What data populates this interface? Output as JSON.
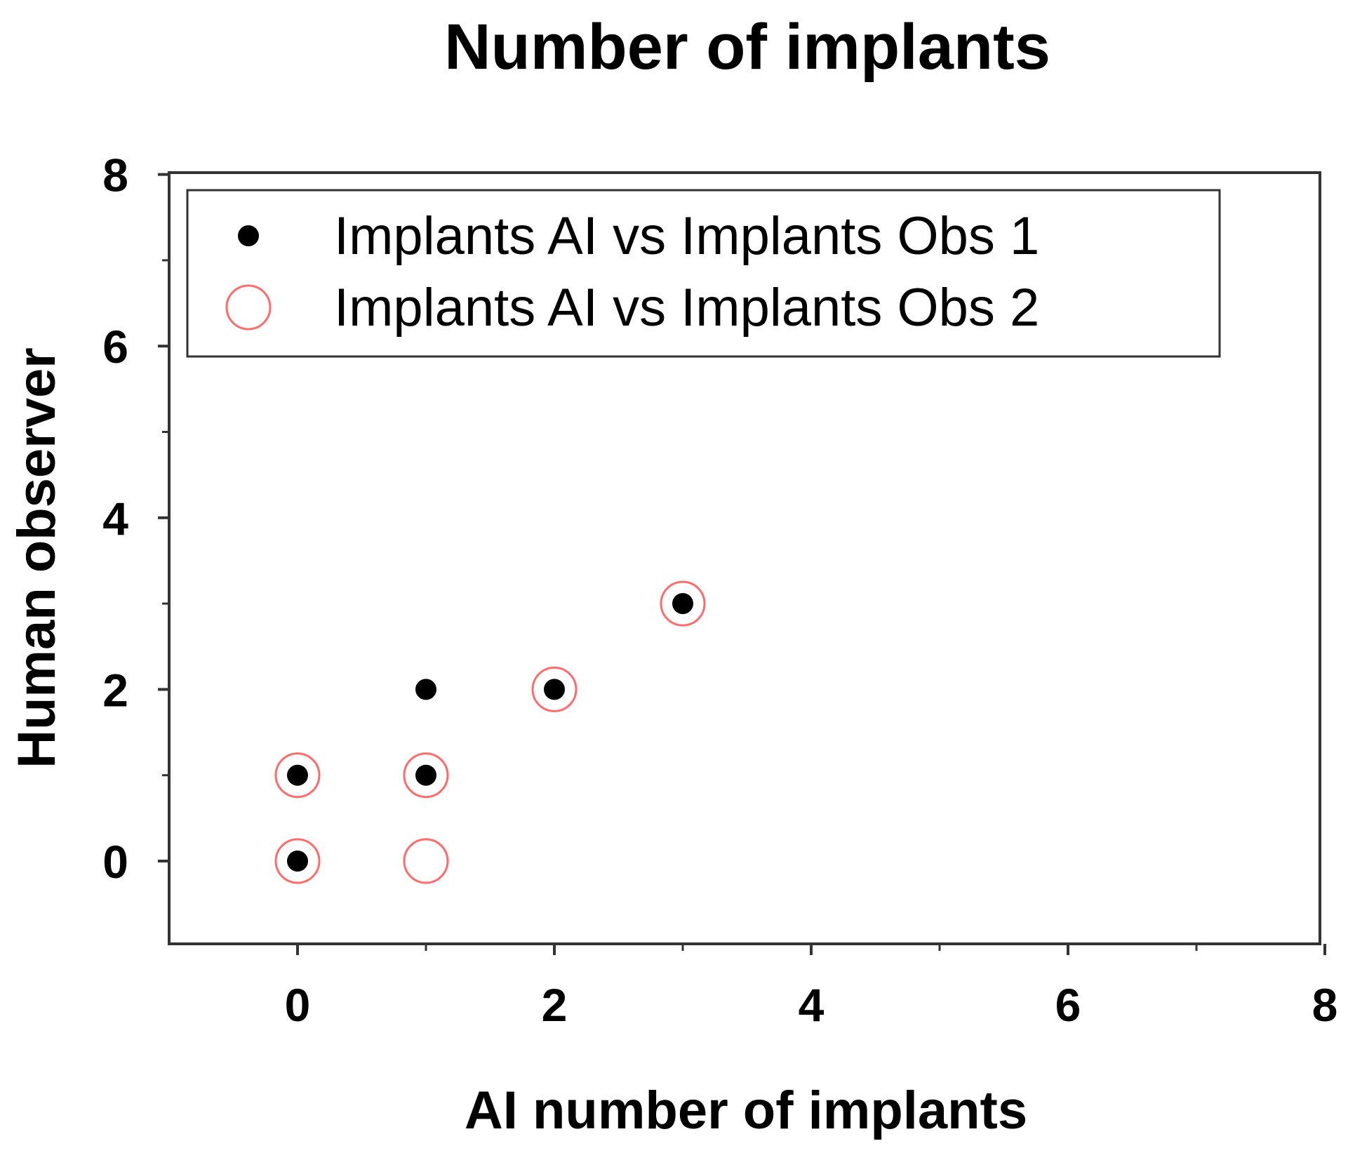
{
  "chart_data": {
    "type": "scatter",
    "title": "Number of implants",
    "xlabel": "AI number of implants",
    "ylabel": "Human observer",
    "xlim": [
      -1,
      8
    ],
    "ylim": [
      -1,
      8
    ],
    "x_ticks": [
      "0",
      "2",
      "4",
      "6",
      "8"
    ],
    "y_ticks": [
      "0",
      "2",
      "4",
      "6",
      "8"
    ],
    "x_tick_values": [
      0,
      2,
      4,
      6,
      8
    ],
    "y_tick_values": [
      0,
      2,
      4,
      6,
      8
    ],
    "x_minor_tick_values": [
      1,
      3,
      5,
      7
    ],
    "y_minor_tick_values": [
      1,
      3,
      5,
      7
    ],
    "grid": false,
    "legend_position": "top",
    "series": [
      {
        "name": "Implants AI vs Implants Obs 1",
        "marker": "filled-circle",
        "color": "#000000",
        "points": [
          {
            "x": 0,
            "y": 0
          },
          {
            "x": 0,
            "y": 1
          },
          {
            "x": 1,
            "y": 1
          },
          {
            "x": 1,
            "y": 2
          },
          {
            "x": 2,
            "y": 2
          },
          {
            "x": 3,
            "y": 3
          }
        ]
      },
      {
        "name": "Implants AI vs Implants Obs 2",
        "marker": "open-circle",
        "color": "#ff6b6b",
        "points": [
          {
            "x": 0,
            "y": 0
          },
          {
            "x": 0,
            "y": 1
          },
          {
            "x": 1,
            "y": 0
          },
          {
            "x": 1,
            "y": 1
          },
          {
            "x": 2,
            "y": 2
          },
          {
            "x": 3,
            "y": 3
          }
        ]
      }
    ]
  }
}
